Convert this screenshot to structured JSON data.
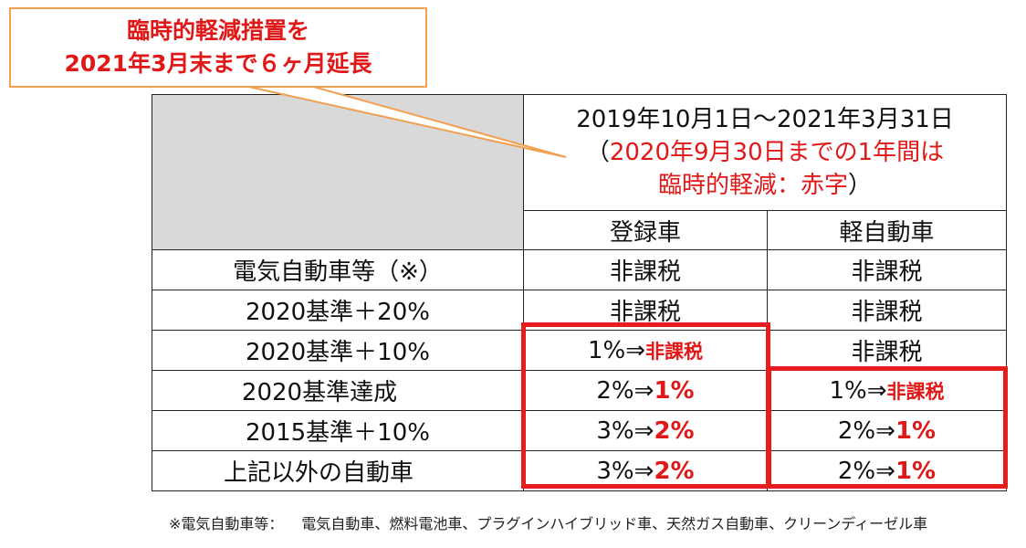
{
  "callout": {
    "line1": "臨時的軽減措置を",
    "line2": "2021年3月末まで６ヶ月延長"
  },
  "table": {
    "period_line1": "2019年10月1日～2021年3月31日",
    "period_line2_open": "（",
    "period_line2_red": "2020年9月30日までの1年間は",
    "period_line3_red": "臨時的軽減：赤字",
    "period_line3_close": "）",
    "col_registered": "登録車",
    "col_kei": "軽自動車",
    "rows": [
      {
        "category": "電気自動車等（※）",
        "registered": {
          "base": "非課税",
          "reduced": ""
        },
        "kei": {
          "base": "非課税",
          "reduced": ""
        }
      },
      {
        "category": "2020基準＋20%",
        "registered": {
          "base": "非課税",
          "reduced": ""
        },
        "kei": {
          "base": "非課税",
          "reduced": ""
        }
      },
      {
        "category": "2020基準＋10%",
        "registered": {
          "base": "1%⇒",
          "reduced": "非課税"
        },
        "kei": {
          "base": "非課税",
          "reduced": ""
        }
      },
      {
        "category": "2020基準達成",
        "registered": {
          "base": "2%⇒",
          "reduced": "1%"
        },
        "kei": {
          "base": "1%⇒",
          "reduced": "非課税"
        }
      },
      {
        "category": "2015基準＋10%",
        "registered": {
          "base": "3%⇒",
          "reduced": "2%"
        },
        "kei": {
          "base": "2%⇒",
          "reduced": "1%"
        }
      },
      {
        "category": "上記以外の自動車",
        "registered": {
          "base": "3%⇒",
          "reduced": "2%"
        },
        "kei": {
          "base": "2%⇒",
          "reduced": "1%"
        }
      }
    ]
  },
  "footnote": {
    "label": "※電気自動車等：",
    "text": "電気自動車、燃料電池車、プラグインハイブリッド車、天然ガス自動車、クリーンディーゼル車"
  },
  "colors": {
    "accent_red": "#e01818",
    "callout_border": "#f0a050",
    "header_gray": "#d9d9d9"
  }
}
